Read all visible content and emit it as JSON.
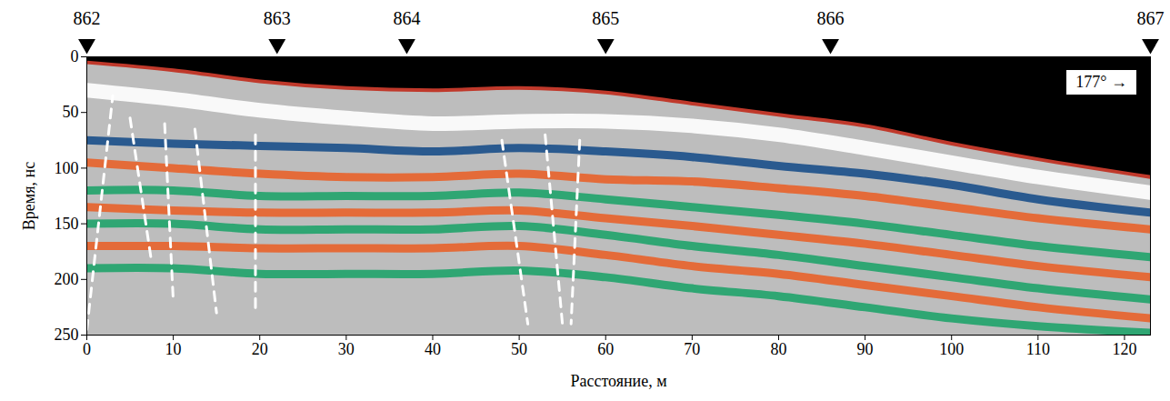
{
  "chart_data": {
    "type": "radargram",
    "xlabel": "Расстояние, м",
    "ylabel": "Время, нс",
    "xlim": [
      0,
      123
    ],
    "ylim": [
      0,
      250
    ],
    "xticks": [
      0,
      10,
      20,
      30,
      40,
      50,
      60,
      70,
      80,
      90,
      100,
      110,
      120
    ],
    "yticks": [
      0,
      50,
      100,
      150,
      200,
      250
    ],
    "annotation": "177° →",
    "pickets": {
      "labels": [
        "862",
        "863",
        "864",
        "865",
        "866",
        "867"
      ],
      "x": [
        0,
        22,
        37,
        60,
        86,
        123
      ]
    },
    "x": [
      0,
      10,
      20,
      30,
      40,
      50,
      60,
      70,
      80,
      90,
      100,
      110,
      123
    ],
    "surface": [
      5,
      12,
      22,
      28,
      30,
      28,
      32,
      42,
      52,
      62,
      78,
      92,
      108
    ],
    "horizons": [
      {
        "color": "#ffffff",
        "values": [
          30,
          38,
          48,
          55,
          60,
          58,
          58,
          62,
          70,
          82,
          95,
          108,
          122
        ]
      },
      {
        "color": "#1a4f8a",
        "values": [
          75,
          78,
          80,
          82,
          85,
          82,
          85,
          90,
          98,
          105,
          115,
          128,
          140
        ]
      },
      {
        "color": "#e8622a",
        "values": [
          95,
          100,
          105,
          108,
          108,
          105,
          110,
          112,
          118,
          125,
          135,
          145,
          155
        ]
      },
      {
        "color": "#1fa36a",
        "values": [
          120,
          120,
          125,
          125,
          125,
          122,
          128,
          135,
          142,
          150,
          160,
          170,
          180
        ]
      },
      {
        "color": "#e8622a",
        "values": [
          135,
          138,
          140,
          140,
          140,
          138,
          145,
          152,
          160,
          168,
          178,
          188,
          198
        ]
      },
      {
        "color": "#1fa36a",
        "values": [
          150,
          150,
          155,
          155,
          155,
          152,
          160,
          170,
          178,
          188,
          198,
          208,
          218
        ]
      },
      {
        "color": "#e8622a",
        "values": [
          170,
          170,
          172,
          172,
          172,
          170,
          178,
          188,
          195,
          205,
          215,
          225,
          235
        ]
      },
      {
        "color": "#1fa36a",
        "values": [
          190,
          190,
          195,
          195,
          195,
          192,
          198,
          208,
          215,
          225,
          235,
          242,
          248
        ]
      }
    ],
    "dashed_lines": [
      {
        "x": [
          0,
          3
        ],
        "y": [
          245,
          35
        ],
        "color": "#ffffff",
        "line_style": "dashed"
      },
      {
        "x": [
          5,
          7.5
        ],
        "y": [
          55,
          185
        ],
        "color": "#ffffff",
        "line_style": "dashed"
      },
      {
        "x": [
          9,
          10
        ],
        "y": [
          60,
          220
        ],
        "color": "#ffffff",
        "line_style": "dashed"
      },
      {
        "x": [
          12.5,
          15
        ],
        "y": [
          65,
          230
        ],
        "color": "#ffffff",
        "line_style": "dashed"
      },
      {
        "x": [
          19.5,
          19.5
        ],
        "y": [
          70,
          230
        ],
        "color": "#ffffff",
        "line_style": "dashed"
      },
      {
        "x": [
          48,
          51
        ],
        "y": [
          75,
          240
        ],
        "color": "#ffffff",
        "line_style": "dashed"
      },
      {
        "x": [
          53,
          55
        ],
        "y": [
          70,
          240
        ],
        "color": "#ffffff",
        "line_style": "dashed"
      },
      {
        "x": [
          57,
          56
        ],
        "y": [
          75,
          240
        ],
        "color": "#ffffff",
        "line_style": "dashed"
      }
    ]
  }
}
